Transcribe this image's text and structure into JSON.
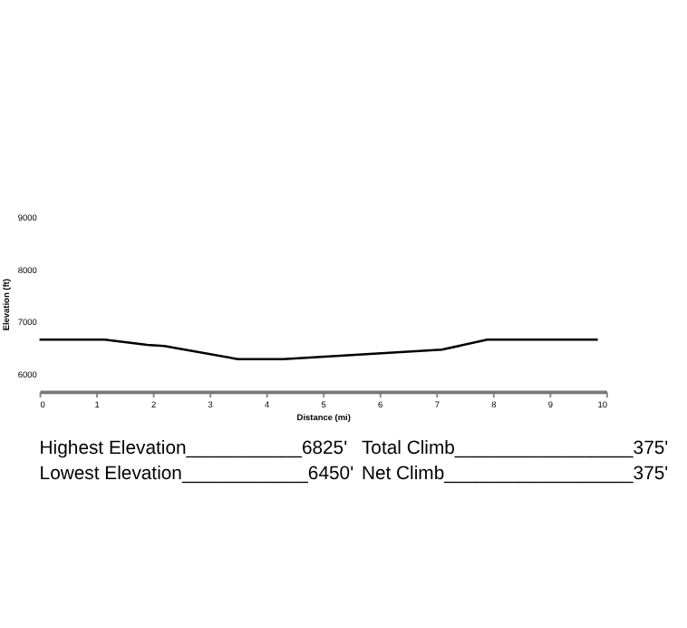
{
  "chart_data": {
    "type": "line",
    "xlabel": "Distance (mi)",
    "ylabel": "Elevation (ft)",
    "x": [
      0,
      1.15,
      1.9,
      2.2,
      3.5,
      4.3,
      7.1,
      7.9,
      9.85
    ],
    "series": [
      {
        "color": "#000000",
        "values": [
          6640,
          6640,
          6540,
          6520,
          6270,
          6270,
          6450,
          6640,
          6640
        ]
      }
    ],
    "xlim": [
      0,
      10
    ],
    "xticks": [
      0,
      1,
      2,
      3,
      4,
      5,
      6,
      7,
      8,
      9,
      10
    ],
    "ylim": [
      5650,
      9000
    ],
    "yticks": [
      6000,
      7000,
      8000,
      9000
    ],
    "grid": false,
    "annotations": [
      "Highest Elevation___________6825'",
      "Total Climb_________________375'",
      "Lowest Elevation____________6450'",
      "Net Climb__________________375'"
    ]
  }
}
